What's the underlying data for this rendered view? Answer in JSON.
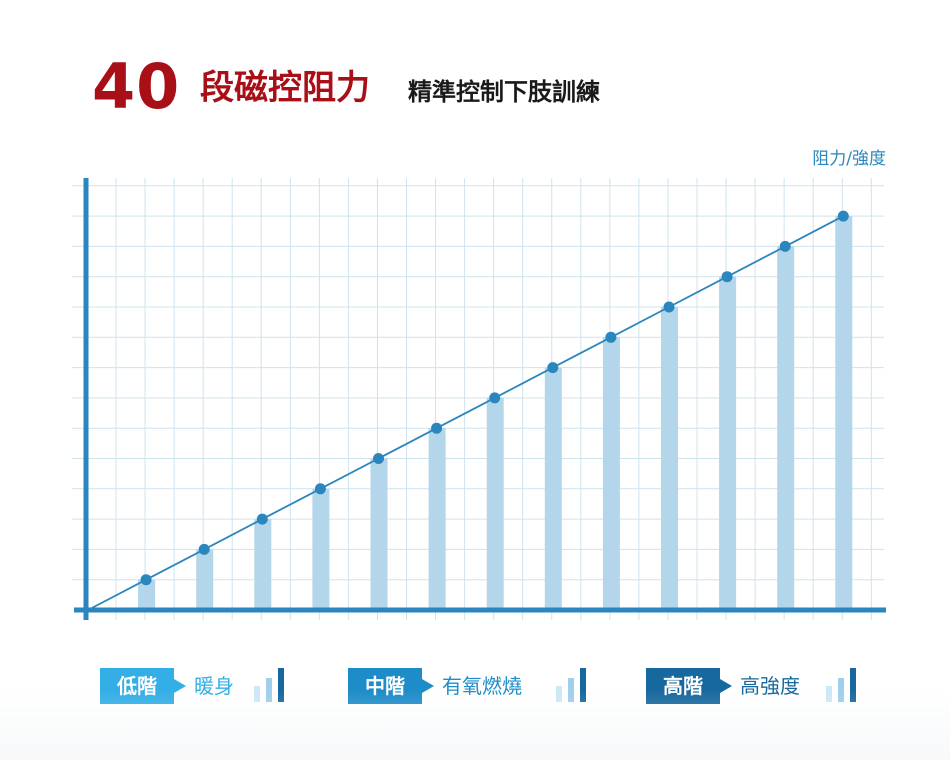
{
  "title": {
    "number": "40",
    "main": "段磁控阻力",
    "sub": "精準控制下肢訓練"
  },
  "chart_data": {
    "type": "bar",
    "ylabel": "阻力/強度",
    "xlabel": "",
    "series": [
      {
        "values": [
          1,
          2,
          3,
          4,
          5,
          6,
          7,
          8,
          9,
          10,
          11,
          12,
          13
        ]
      }
    ],
    "ylim": [
      0,
      14
    ],
    "grid": true,
    "overlay_line": true
  },
  "legend": [
    {
      "tag": "低階",
      "label": "暖身",
      "level": "low"
    },
    {
      "tag": "中階",
      "label": "有氧燃燒",
      "level": "mid"
    },
    {
      "tag": "高階",
      "label": "高強度",
      "level": "high"
    }
  ],
  "colors": {
    "accent_red": "#a80f17",
    "axis_blue": "#2a86bd",
    "bar_blue": "#b3d6ea",
    "grid": "#cfe3ee",
    "low": "#33aee6",
    "mid": "#1e8cc8",
    "high": "#17689e"
  }
}
